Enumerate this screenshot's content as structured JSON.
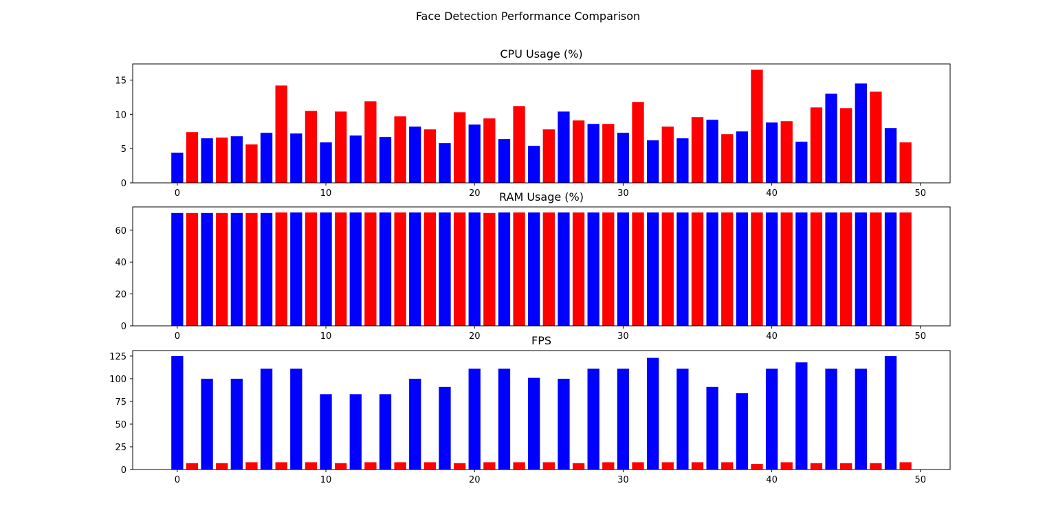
{
  "figure_title": "Face Detection Performance Comparison",
  "colors": {
    "even_index_bar": "#0000ff",
    "odd_index_bar": "#ff0000"
  },
  "chart_data": [
    {
      "type": "bar",
      "title": "CPU Usage (%)",
      "x": [
        0,
        1,
        2,
        3,
        4,
        5,
        6,
        7,
        8,
        9,
        10,
        11,
        12,
        13,
        14,
        15,
        16,
        17,
        18,
        19,
        20,
        21,
        22,
        23,
        24,
        25,
        26,
        27,
        28,
        29,
        30,
        31,
        32,
        33,
        34,
        35,
        36,
        37,
        38,
        39,
        40,
        41,
        42,
        43,
        44,
        45,
        46,
        47,
        48,
        49
      ],
      "values": [
        4.4,
        7.4,
        6.5,
        6.6,
        6.8,
        5.6,
        7.3,
        14.2,
        7.2,
        10.5,
        5.9,
        10.4,
        6.9,
        11.9,
        6.7,
        9.7,
        8.2,
        7.8,
        5.8,
        10.3,
        8.5,
        9.4,
        6.4,
        11.2,
        5.4,
        7.8,
        10.4,
        9.1,
        8.6,
        8.6,
        7.3,
        11.8,
        6.2,
        8.2,
        6.5,
        9.6,
        9.2,
        7.1,
        7.5,
        16.5,
        8.8,
        9.0,
        6.0,
        11.0,
        13.0,
        10.9,
        14.5,
        13.3,
        8.0,
        5.9
      ],
      "xlim": [
        -3,
        52
      ],
      "ylim": [
        0,
        17.35
      ],
      "xticks": [
        0,
        10,
        20,
        30,
        40,
        50
      ],
      "yticks": [
        0,
        5,
        10,
        15
      ],
      "bar_colors": "alternating (even index blue, odd index red)",
      "grid": false,
      "xlabel": "",
      "ylabel": ""
    },
    {
      "type": "bar",
      "title": "RAM Usage (%)",
      "x": [
        0,
        1,
        2,
        3,
        4,
        5,
        6,
        7,
        8,
        9,
        10,
        11,
        12,
        13,
        14,
        15,
        16,
        17,
        18,
        19,
        20,
        21,
        22,
        23,
        24,
        25,
        26,
        27,
        28,
        29,
        30,
        31,
        32,
        33,
        34,
        35,
        36,
        37,
        38,
        39,
        40,
        41,
        42,
        43,
        44,
        45,
        46,
        47,
        48,
        49
      ],
      "values": [
        70.8,
        70.8,
        70.8,
        70.8,
        70.8,
        70.8,
        70.8,
        71.1,
        71.1,
        71.1,
        71.1,
        71.1,
        71.1,
        71.1,
        71.1,
        71.1,
        71.1,
        71.1,
        71.1,
        71.1,
        71.1,
        70.8,
        71.1,
        71.1,
        71.1,
        71.1,
        71.1,
        71.1,
        71.1,
        71.1,
        71.1,
        71.1,
        71.1,
        71.1,
        71.1,
        71.1,
        71.1,
        71.1,
        71.1,
        71.1,
        71.1,
        71.1,
        71.1,
        71.1,
        71.1,
        71.1,
        71.1,
        71.1,
        71.1,
        71.1
      ],
      "xlim": [
        -3,
        52
      ],
      "ylim": [
        0,
        74.6
      ],
      "xticks": [
        0,
        10,
        20,
        30,
        40,
        50
      ],
      "yticks": [
        0,
        20,
        40,
        60
      ],
      "bar_colors": "alternating (even index blue, odd index red)",
      "grid": false,
      "xlabel": "",
      "ylabel": ""
    },
    {
      "type": "bar",
      "title": "FPS",
      "x": [
        0,
        1,
        2,
        3,
        4,
        5,
        6,
        7,
        8,
        9,
        10,
        11,
        12,
        13,
        14,
        15,
        16,
        17,
        18,
        19,
        20,
        21,
        22,
        23,
        24,
        25,
        26,
        27,
        28,
        29,
        30,
        31,
        32,
        33,
        34,
        35,
        36,
        37,
        38,
        39,
        40,
        41,
        42,
        43,
        44,
        45,
        46,
        47,
        48,
        49
      ],
      "values": [
        125,
        7,
        100,
        7,
        100,
        8,
        111,
        8,
        111,
        8,
        83,
        7,
        83,
        8,
        83,
        8,
        100,
        8,
        91,
        7,
        111,
        8,
        111,
        8,
        101,
        8,
        100,
        7,
        111,
        8,
        111,
        8,
        123,
        8,
        111,
        8,
        91,
        8,
        84,
        6,
        111,
        8,
        118,
        7,
        111,
        7,
        111,
        7,
        125,
        8
      ],
      "xlim": [
        -3,
        52
      ],
      "ylim": [
        0,
        131
      ],
      "xticks": [
        0,
        10,
        20,
        30,
        40,
        50
      ],
      "yticks": [
        0,
        25,
        50,
        75,
        100,
        125
      ],
      "bar_colors": "alternating (even index blue, odd index red)",
      "grid": false,
      "xlabel": "",
      "ylabel": ""
    }
  ]
}
